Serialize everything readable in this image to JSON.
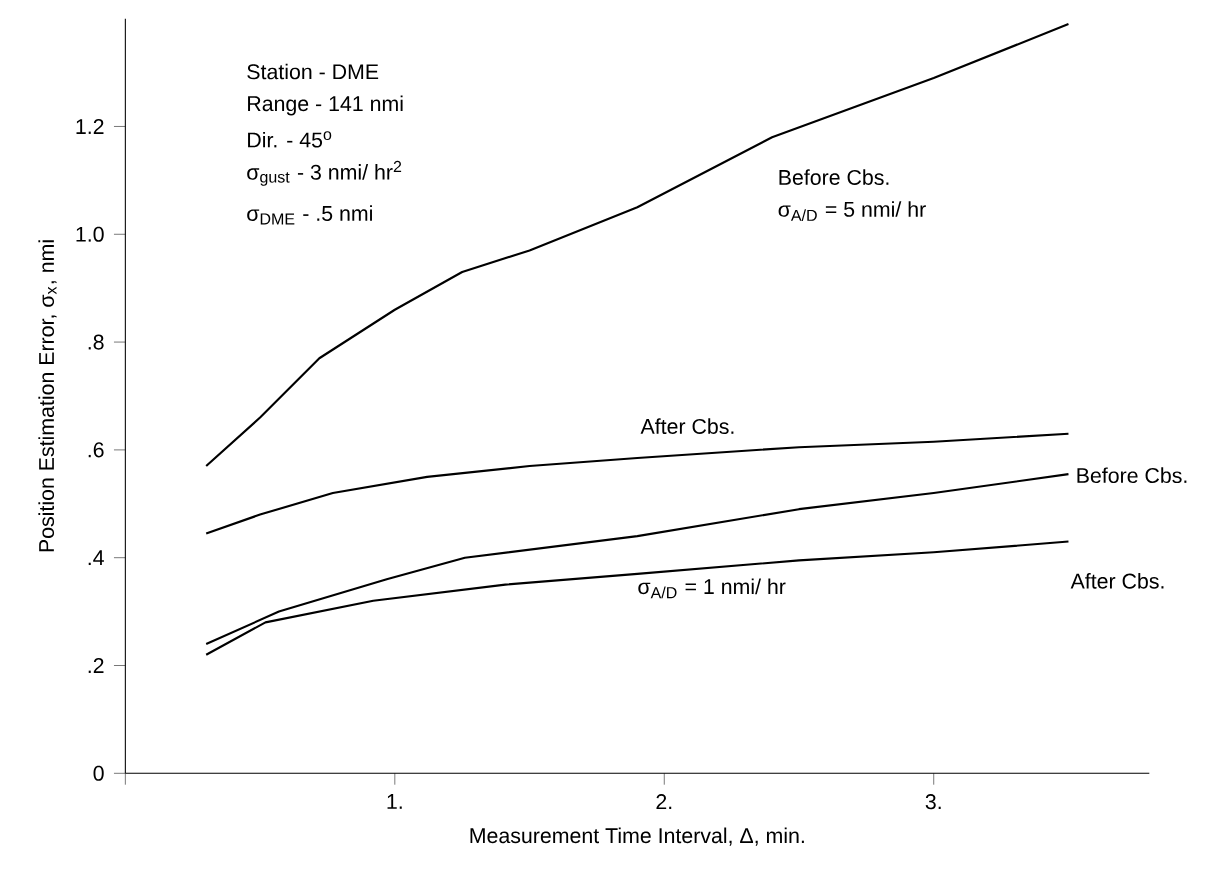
{
  "chart_data": {
    "type": "line",
    "xlabel": "Measurement Time Interval, Δ, min.",
    "ylabel": "Position Estimation Error, σ$_{x}$, nmi",
    "xlim": [
      0,
      3.8
    ],
    "ylim": [
      0,
      1.4
    ],
    "xticks": [
      {
        "value": 0,
        "label": null
      },
      {
        "value": 1,
        "label": "1."
      },
      {
        "value": 2,
        "label": "2."
      },
      {
        "value": 3,
        "label": "3."
      }
    ],
    "yticks": [
      {
        "value": 0,
        "label": "0"
      },
      {
        "value": 0.2,
        "label": ".2"
      },
      {
        "value": 0.4,
        "label": ".4"
      },
      {
        "value": 0.6,
        "label": ".6"
      },
      {
        "value": 0.8,
        "label": ".8"
      },
      {
        "value": 1.0,
        "label": "1.0"
      },
      {
        "value": 1.2,
        "label": "1.2"
      }
    ],
    "grid": false,
    "marker": "none",
    "line_style": "solid",
    "series": [
      {
        "color": "#000000",
        "x": [
          0.3,
          0.5,
          0.72,
          1.0,
          1.25,
          1.5,
          1.9,
          2.4,
          3.0,
          3.5
        ],
        "values": [
          0.57,
          0.66,
          0.77,
          0.86,
          0.93,
          0.97,
          1.05,
          1.18,
          1.29,
          1.39
        ]
      },
      {
        "color": "#000000",
        "x": [
          0.3,
          0.5,
          0.77,
          1.12,
          1.5,
          1.9,
          2.5,
          3.0,
          3.5
        ],
        "values": [
          0.445,
          0.48,
          0.52,
          0.55,
          0.57,
          0.585,
          0.605,
          0.615,
          0.63
        ]
      },
      {
        "color": "#000000",
        "x": [
          0.3,
          0.57,
          0.97,
          1.26,
          1.9,
          2.5,
          3.0,
          3.5
        ],
        "values": [
          0.24,
          0.3,
          0.36,
          0.4,
          0.44,
          0.49,
          0.52,
          0.555
        ]
      },
      {
        "color": "#000000",
        "x": [
          0.3,
          0.52,
          0.92,
          1.41,
          1.9,
          2.5,
          3.0,
          3.5
        ],
        "values": [
          0.22,
          0.28,
          0.32,
          0.35,
          0.37,
          0.395,
          0.41,
          0.43
        ]
      }
    ],
    "annotations": [
      "Station - DME",
      "Range - 141 nmi",
      "Dir. - 45$^{o}$",
      "σ$_{gust}$ - 3 nmi/ hr$^{2}$",
      "σ$_{DME}$ - .5 nmi",
      "Before Cbs.",
      "σ$_{A/D}$ = 5 nmi/ hr",
      "After Cbs.",
      "Before Cbs.",
      "After Cbs.",
      "σ$_{A/D}$ = 1 nmi/ hr"
    ]
  }
}
